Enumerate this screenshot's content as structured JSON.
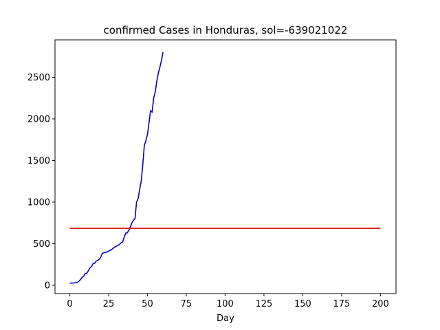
{
  "chart_data": {
    "type": "line",
    "title": "confirmed Cases in Honduras, sol=-639021022",
    "xlabel": "Day",
    "ylabel": "",
    "xlim": [
      -9.5,
      210
    ],
    "ylim": [
      -100,
      2950
    ],
    "xticks": [
      0,
      25,
      50,
      75,
      100,
      125,
      150,
      175,
      200
    ],
    "yticks": [
      0,
      500,
      1000,
      1500,
      2000,
      2500
    ],
    "grid": false,
    "colors": {
      "cases": "#0000cc",
      "threshold": "#dd0000",
      "axes": "#000000"
    },
    "series": [
      {
        "kind": "cases",
        "x": [
          0,
          1,
          2,
          3,
          4,
          5,
          6,
          7,
          8,
          9,
          10,
          11,
          12,
          13,
          14,
          15,
          16,
          17,
          18,
          19,
          20,
          21,
          22,
          23,
          24,
          25,
          26,
          27,
          28,
          29,
          30,
          31,
          32,
          33,
          34,
          35,
          36,
          37,
          38,
          39,
          40,
          41,
          42,
          43,
          44,
          45,
          46,
          47,
          48,
          49,
          50,
          51,
          52,
          53,
          54,
          55,
          56,
          57,
          58,
          59,
          60
        ],
        "y": [
          25,
          26,
          27,
          28,
          30,
          35,
          50,
          70,
          95,
          110,
          140,
          145,
          175,
          210,
          225,
          260,
          265,
          290,
          300,
          310,
          340,
          385,
          390,
          395,
          400,
          410,
          420,
          430,
          445,
          460,
          470,
          480,
          490,
          510,
          520,
          575,
          625,
          630,
          660,
          700,
          750,
          780,
          800,
          1000,
          1040,
          1150,
          1250,
          1450,
          1680,
          1740,
          1810,
          1950,
          2100,
          2080,
          2250,
          2320,
          2450,
          2550,
          2620,
          2700,
          2800
        ]
      },
      {
        "kind": "threshold",
        "x": [
          0,
          200
        ],
        "y": [
          685,
          685
        ]
      }
    ]
  }
}
